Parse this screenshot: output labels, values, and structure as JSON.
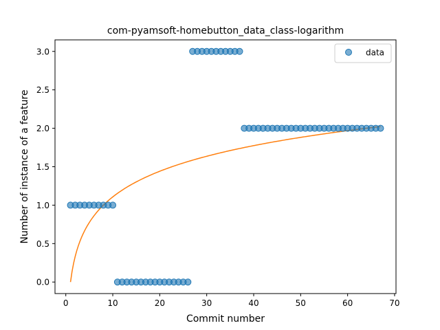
{
  "chart_data": {
    "type": "scatter",
    "title": "com-pyamsoft-homebutton_data_class-logarithm",
    "xlabel": "Commit number",
    "ylabel": "Number of instance of a feature",
    "xlim": [
      -2.3,
      70.3
    ],
    "ylim": [
      -0.15,
      3.15
    ],
    "xticks": [
      0,
      10,
      20,
      30,
      40,
      50,
      60,
      70
    ],
    "yticks": [
      0.0,
      0.5,
      1.0,
      1.5,
      2.0,
      2.5,
      3.0
    ],
    "xtick_labels": [
      "0",
      "10",
      "20",
      "30",
      "40",
      "50",
      "60",
      "70"
    ],
    "ytick_labels": [
      "0.0",
      "0.5",
      "1.0",
      "1.5",
      "2.0",
      "2.5",
      "3.0"
    ],
    "legend": {
      "placement": "top-right",
      "entries": [
        "data"
      ]
    },
    "grid": false,
    "series": [
      {
        "name": "data",
        "kind": "scatter",
        "color": "#1f77b4",
        "segments": [
          {
            "x_from": 1,
            "x_to": 10,
            "y": 1
          },
          {
            "x_from": 11,
            "x_to": 26,
            "y": 0
          },
          {
            "x_from": 27,
            "x_to": 37,
            "y": 3
          },
          {
            "x_from": 38,
            "x_to": 67,
            "y": 2
          }
        ]
      },
      {
        "kind": "line",
        "color": "#ff7f0e",
        "fit": {
          "model": "logarithmic",
          "a": 0.0,
          "b": 0.481,
          "x_from": 1,
          "x_to": 67
        }
      }
    ]
  }
}
